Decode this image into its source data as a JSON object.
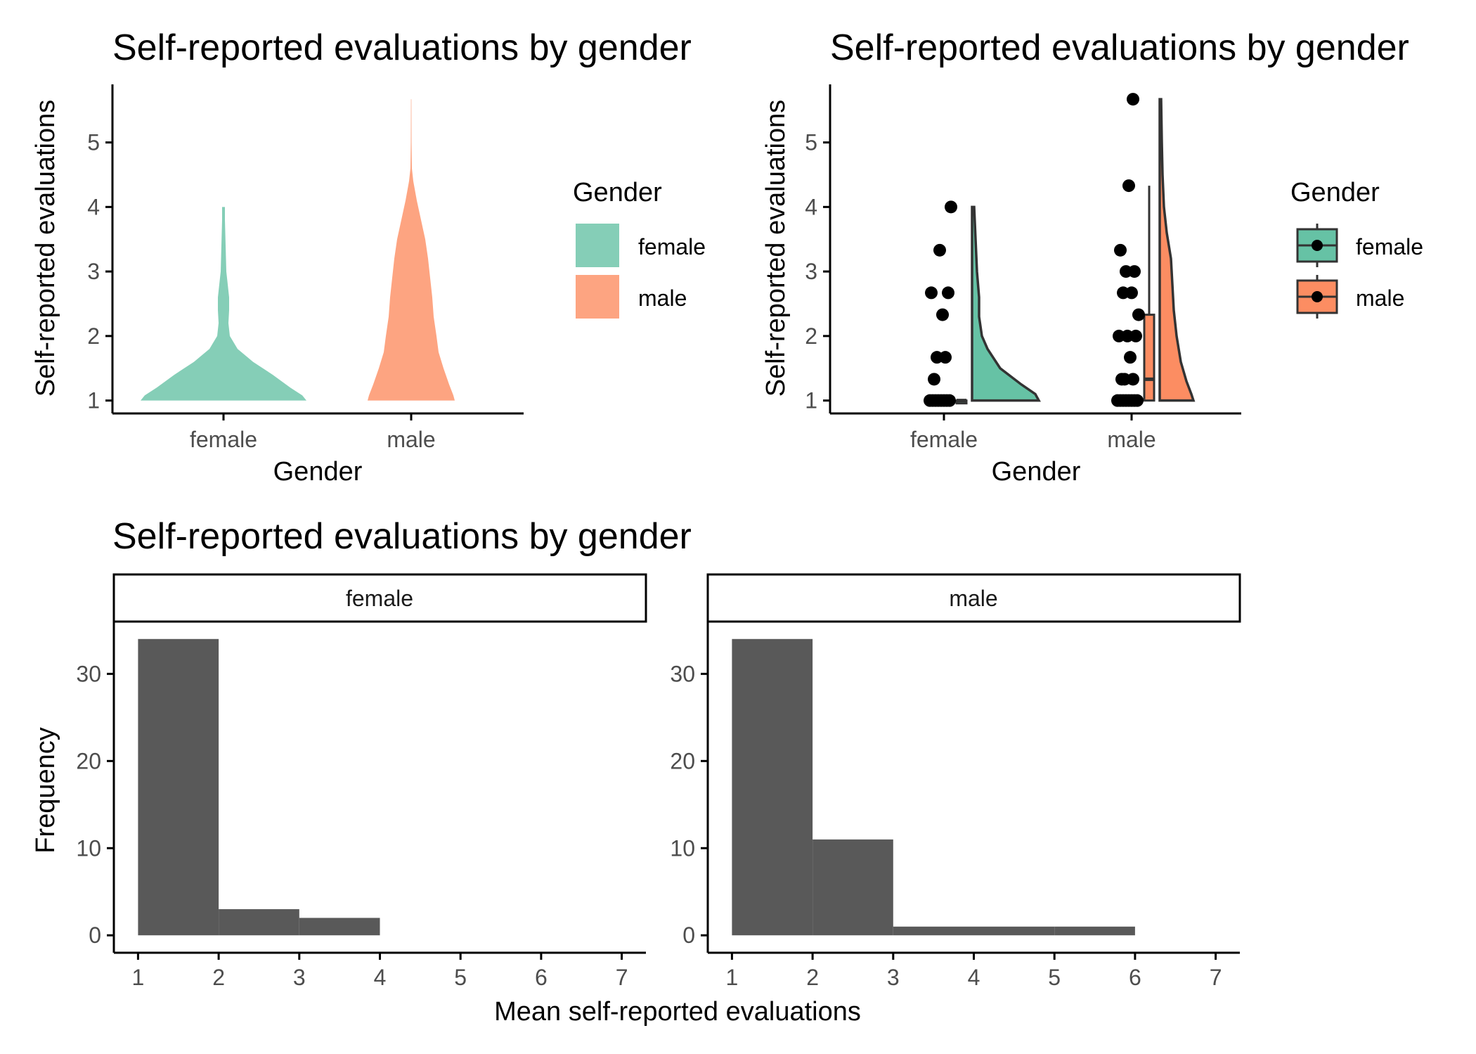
{
  "colors": {
    "female_fill": "#66c2a5",
    "male_fill": "#fc8d62",
    "bar": "#595959",
    "axis": "#000000",
    "tick_text": "#4d4d4d"
  },
  "chart_data": [
    {
      "type": "violin",
      "title": "Self-reported evaluations by gender",
      "xlabel": "Gender",
      "ylabel": "Self-reported evaluations",
      "categories": [
        "female",
        "male"
      ],
      "ylim": [
        0.8,
        5.9
      ],
      "yticks": [
        "1",
        "2",
        "3",
        "4",
        "5"
      ],
      "legend": {
        "title": "Gender",
        "position": "right",
        "items": [
          "female",
          "male"
        ]
      },
      "series": [
        {
          "name": "female",
          "min": 1.0,
          "max": 4.0
        },
        {
          "name": "male",
          "min": 1.0,
          "max": 5.67
        }
      ]
    },
    {
      "type": "raincloud",
      "title": "Self-reported evaluations by gender",
      "xlabel": "Gender",
      "ylabel": "Self-reported evaluations",
      "categories": [
        "female",
        "male"
      ],
      "ylim": [
        0.8,
        5.9
      ],
      "yticks": [
        "1",
        "2",
        "3",
        "4",
        "5"
      ],
      "legend": {
        "title": "Gender",
        "position": "right",
        "items": [
          "female",
          "male"
        ]
      },
      "series": [
        {
          "name": "female",
          "points": [
            1,
            1,
            1,
            1,
            1,
            1,
            1,
            1,
            1.33,
            1.67,
            1.67,
            2.33,
            2.67,
            2.67,
            3.33,
            4.0
          ],
          "box": {
            "q1": 1.0,
            "median": 1.0,
            "q3": 1.0,
            "whisker_low": 1.0,
            "whisker_high": 1.0
          },
          "density_max": 4.0
        },
        {
          "name": "male",
          "points": [
            1,
            1,
            1,
            1,
            1,
            1,
            1,
            1,
            1.33,
            1.33,
            1.33,
            1.67,
            2.0,
            2.0,
            2.0,
            2.33,
            2.67,
            2.67,
            3.0,
            3.0,
            3.33,
            4.33,
            5.67
          ],
          "box": {
            "q1": 1.0,
            "median": 1.33,
            "q3": 2.33,
            "whisker_low": 1.0,
            "whisker_high": 4.33
          },
          "density_max": 5.67
        }
      ]
    },
    {
      "type": "bar",
      "title": "Self-reported evaluations by gender",
      "xlabel": "Mean self-reported evaluations",
      "ylabel": "Frequency",
      "xlim": [
        0.7,
        7.3
      ],
      "ylim": [
        -2,
        36
      ],
      "xticks": [
        "1",
        "2",
        "3",
        "4",
        "5",
        "6",
        "7"
      ],
      "yticks": [
        "0",
        "10",
        "20",
        "30"
      ],
      "facets": [
        {
          "name": "female",
          "bins": [
            {
              "from": 1,
              "to": 2,
              "count": 34
            },
            {
              "from": 2,
              "to": 3,
              "count": 3
            },
            {
              "from": 3,
              "to": 4,
              "count": 2
            }
          ]
        },
        {
          "name": "male",
          "bins": [
            {
              "from": 1,
              "to": 2,
              "count": 34
            },
            {
              "from": 2,
              "to": 3,
              "count": 11
            },
            {
              "from": 3,
              "to": 4,
              "count": 1
            },
            {
              "from": 4,
              "to": 5,
              "count": 1
            },
            {
              "from": 5,
              "to": 6,
              "count": 1
            }
          ]
        }
      ]
    }
  ]
}
